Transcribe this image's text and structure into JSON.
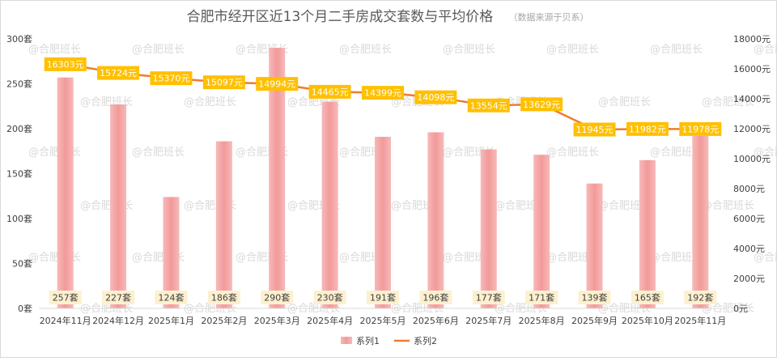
{
  "title": "合肥市经开区近13个月二手房成交套数与平均价格",
  "source_note": "（数据来源于贝系）",
  "watermark": "@合肥班长",
  "colors": {
    "bar": "#f4a3a3",
    "line": "#ed7d31",
    "label_bg": "#ffc000",
    "bar_label_bg": "#fdf0cf",
    "axis_text": "#404040"
  },
  "chart_data": {
    "type": "bar",
    "categories": [
      "2024年11月",
      "2024年12月",
      "2025年1月",
      "2025年2月",
      "2025年3月",
      "2025年4月",
      "2025年5月",
      "2025年6月",
      "2025年7月",
      "2025年8月",
      "2025年9月",
      "2025年10月",
      "2025年11月"
    ],
    "series": [
      {
        "name": "系列1",
        "type": "bar",
        "axis": "left",
        "values": [
          257,
          227,
          124,
          186,
          290,
          230,
          191,
          196,
          177,
          171,
          139,
          165,
          192
        ],
        "labels": [
          "257套",
          "227套",
          "124套",
          "186套",
          "290套",
          "230套",
          "191套",
          "196套",
          "177套",
          "171套",
          "139套",
          "165套",
          "192套"
        ]
      },
      {
        "name": "系列2",
        "type": "line",
        "axis": "right",
        "values": [
          16303,
          15724,
          15370,
          15097,
          14994,
          14465,
          14399,
          14098,
          13554,
          13629,
          11945,
          11982,
          11978
        ],
        "labels": [
          "16303元",
          "15724元",
          "15370元",
          "15097元",
          "14994元",
          "14465元",
          "14399元",
          "14098元",
          "13554元",
          "13629元",
          "11945元",
          "11982元",
          "11978元"
        ]
      }
    ],
    "y_left": {
      "min": 0,
      "max": 300,
      "ticks": [
        0,
        50,
        100,
        150,
        200,
        250,
        300
      ],
      "tick_labels": [
        "0套",
        "50套",
        "100套",
        "150套",
        "200套",
        "250套",
        "300套"
      ]
    },
    "y_right": {
      "min": 0,
      "max": 18000,
      "ticks": [
        0,
        2000,
        4000,
        6000,
        8000,
        10000,
        12000,
        14000,
        16000,
        18000
      ],
      "tick_labels": [
        "0元",
        "2000元",
        "4000元",
        "6000元",
        "8000元",
        "10000元",
        "12000元",
        "14000元",
        "16000元",
        "18000元"
      ]
    },
    "grid": false,
    "legend_position": "bottom"
  }
}
